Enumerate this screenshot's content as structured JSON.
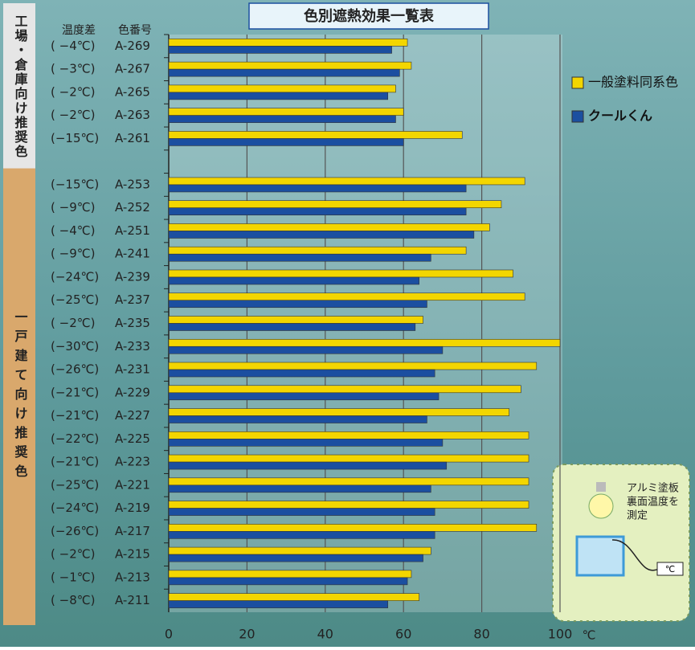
{
  "chart_data": {
    "type": "bar",
    "orientation": "horizontal",
    "title": "色別遮熱効果一覧表",
    "category_headers": [
      "温度差",
      "色番号"
    ],
    "group_labels": [
      "工場・倉庫向け推奨色",
      "一戸建て向け推奨色"
    ],
    "temp_diff": [
      "( −4℃)",
      "( −3℃)",
      "( −2℃)",
      "( −2℃)",
      "(−15℃)",
      null,
      "(−15℃)",
      "( −9℃)",
      "( −4℃)",
      "( −9℃)",
      "(−24℃)",
      "(−25℃)",
      "( −2℃)",
      "(−30℃)",
      "(−26℃)",
      "(−21℃)",
      "(−21℃)",
      "(−22℃)",
      "(−21℃)",
      "(−25℃)",
      "(−24℃)",
      "(−26℃)",
      "( −2℃)",
      "( −1℃)",
      "( −8℃)"
    ],
    "categories": [
      "A-269",
      "A-267",
      "A-265",
      "A-263",
      "A-261",
      null,
      "A-253",
      "A-252",
      "A-251",
      "A-241",
      "A-239",
      "A-237",
      "A-235",
      "A-233",
      "A-231",
      "A-229",
      "A-227",
      "A-225",
      "A-223",
      "A-221",
      "A-219",
      "A-217",
      "A-215",
      "A-213",
      "A-211"
    ],
    "series": [
      {
        "name": "一般塗料同系色",
        "color": "#f3d600",
        "values": [
          61,
          62,
          58,
          60,
          75,
          null,
          91,
          85,
          82,
          76,
          88,
          91,
          65,
          100,
          94,
          90,
          87,
          92,
          92,
          92,
          92,
          94,
          67,
          62,
          64
        ]
      },
      {
        "name": "クールくん",
        "color": "#1b4fa0",
        "values": [
          57,
          59,
          56,
          58,
          60,
          null,
          76,
          76,
          78,
          67,
          64,
          66,
          63,
          70,
          68,
          69,
          66,
          70,
          71,
          67,
          68,
          68,
          65,
          61,
          56
        ]
      }
    ],
    "xlim": [
      0,
      100
    ],
    "xticks": [
      0,
      20,
      40,
      60,
      80,
      100
    ],
    "x_unit": "℃",
    "grid": true,
    "legend": "right"
  },
  "inset": {
    "lines": [
      "アルミ塗板",
      "裏面温度を",
      "測定"
    ],
    "meter": "℃"
  }
}
